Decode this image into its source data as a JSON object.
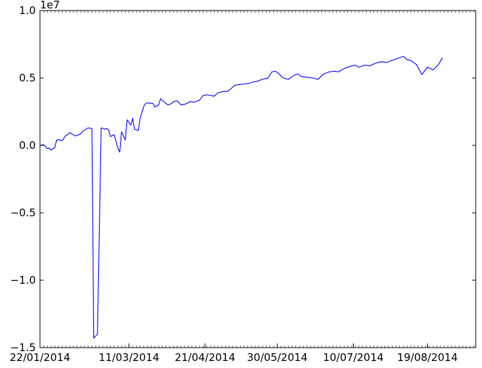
{
  "chart_data": {
    "type": "line",
    "title": "",
    "xlabel": "",
    "ylabel": "",
    "offset_label": "1e7",
    "ylim": [
      -1.5,
      1.0
    ],
    "yticks": [
      {
        "value": 1.0,
        "label": "1.0"
      },
      {
        "value": 0.5,
        "label": "0.5"
      },
      {
        "value": 0.0,
        "label": "0.0"
      },
      {
        "value": -0.5,
        "label": "−0.5"
      },
      {
        "value": -1.0,
        "label": "−1.0"
      },
      {
        "value": -1.5,
        "label": "−1.5"
      }
    ],
    "xlim": [
      "2014-01-22",
      "2014-09-14"
    ],
    "xticks": [
      {
        "value": "2014-01-22",
        "label": "22/01/2014"
      },
      {
        "value": "2014-03-11",
        "label": "11/03/2014"
      },
      {
        "value": "2014-04-21",
        "label": "21/04/2014"
      },
      {
        "value": "2014-05-30",
        "label": "30/05/2014"
      },
      {
        "value": "2014-07-10",
        "label": "10/07/2014"
      },
      {
        "value": "2014-08-19",
        "label": "19/08/2014"
      }
    ],
    "grid": false,
    "series": [
      {
        "color": "#0000ff",
        "x": [
          "2014-01-22",
          "2014-01-24",
          "2014-01-26",
          "2014-01-27",
          "2014-01-28",
          "2014-01-30",
          "2014-01-31",
          "2014-02-01",
          "2014-02-03",
          "2014-02-05",
          "2014-02-06",
          "2014-02-07",
          "2014-02-10",
          "2014-02-11",
          "2014-02-13",
          "2014-02-14",
          "2014-02-17",
          "2014-02-19",
          "2014-02-20",
          "2014-02-22",
          "2014-02-24",
          "2014-02-26",
          "2014-02-27",
          "2014-02-28",
          "2014-03-01",
          "2014-03-03",
          "2014-03-05",
          "2014-03-06",
          "2014-03-07",
          "2014-03-09",
          "2014-03-10",
          "2014-03-12",
          "2014-03-13",
          "2014-03-14",
          "2014-03-16",
          "2014-03-17",
          "2014-03-19",
          "2014-03-20",
          "2014-03-21",
          "2014-03-24",
          "2014-03-25",
          "2014-03-27",
          "2014-03-28",
          "2014-03-31",
          "2014-04-01",
          "2014-04-03",
          "2014-04-04",
          "2014-04-06",
          "2014-04-08",
          "2014-04-10",
          "2014-04-11",
          "2014-04-13",
          "2014-04-15",
          "2014-04-17",
          "2014-04-18",
          "2014-04-20",
          "2014-04-22",
          "2014-04-24",
          "2014-04-26",
          "2014-04-28",
          "2014-05-01",
          "2014-05-03",
          "2014-05-05",
          "2014-05-07",
          "2014-05-09",
          "2014-05-12",
          "2014-05-15",
          "2014-05-17",
          "2014-05-19",
          "2014-05-22",
          "2014-05-25",
          "2014-05-27",
          "2014-05-29",
          "2014-05-31",
          "2014-06-02",
          "2014-06-05",
          "2014-06-08",
          "2014-06-10",
          "2014-06-12",
          "2014-06-15",
          "2014-06-18",
          "2014-06-21",
          "2014-06-24",
          "2014-06-27",
          "2014-06-30",
          "2014-07-02",
          "2014-07-05",
          "2014-07-08",
          "2014-07-11",
          "2014-07-13",
          "2014-07-16",
          "2014-07-19",
          "2014-07-22",
          "2014-07-25",
          "2014-07-28",
          "2014-07-31",
          "2014-08-03",
          "2014-08-06",
          "2014-08-08",
          "2014-08-10",
          "2014-08-13",
          "2014-08-16",
          "2014-08-19",
          "2014-08-22",
          "2014-08-25",
          "2014-08-27"
        ],
        "y": [
          0.0,
          0.005,
          -0.025,
          -0.02,
          -0.035,
          -0.015,
          0.04,
          0.042,
          0.035,
          0.075,
          0.08,
          0.095,
          0.07,
          0.075,
          0.085,
          0.105,
          0.13,
          0.125,
          -1.43,
          -1.4,
          0.13,
          0.12,
          0.125,
          0.115,
          0.065,
          0.08,
          -0.02,
          -0.05,
          0.1,
          0.04,
          0.19,
          0.15,
          0.2,
          0.12,
          0.11,
          0.2,
          0.29,
          0.31,
          0.315,
          0.31,
          0.285,
          0.3,
          0.345,
          0.31,
          0.3,
          0.31,
          0.325,
          0.33,
          0.3,
          0.305,
          0.31,
          0.325,
          0.32,
          0.33,
          0.335,
          0.37,
          0.375,
          0.37,
          0.365,
          0.39,
          0.4,
          0.4,
          0.42,
          0.445,
          0.45,
          0.455,
          0.46,
          0.47,
          0.475,
          0.49,
          0.5,
          0.545,
          0.55,
          0.53,
          0.5,
          0.49,
          0.52,
          0.53,
          0.51,
          0.505,
          0.5,
          0.49,
          0.53,
          0.545,
          0.55,
          0.545,
          0.57,
          0.585,
          0.595,
          0.58,
          0.595,
          0.59,
          0.61,
          0.62,
          0.615,
          0.63,
          0.645,
          0.66,
          0.635,
          0.63,
          0.6,
          0.525,
          0.58,
          0.56,
          0.6,
          0.65
        ]
      }
    ]
  }
}
